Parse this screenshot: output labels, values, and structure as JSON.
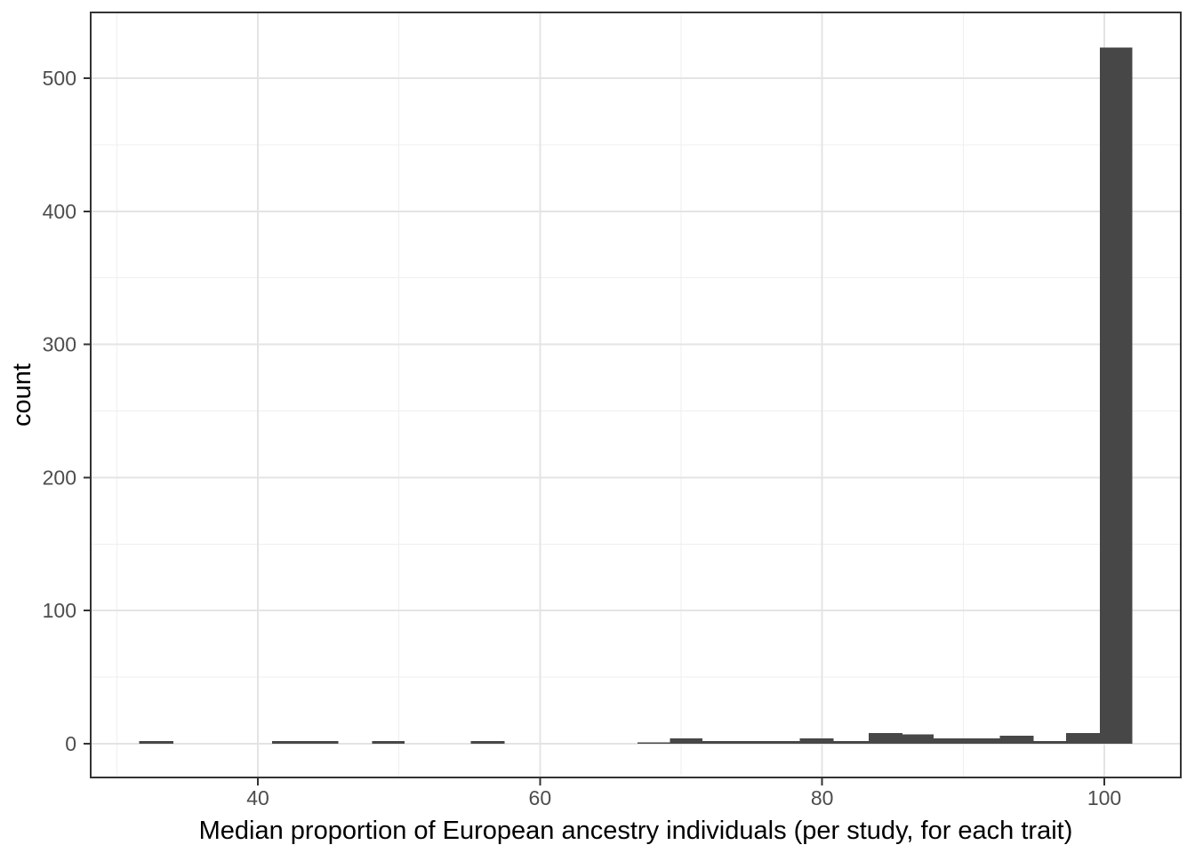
{
  "chart_data": {
    "type": "histogram",
    "title": "",
    "xlabel": "Median proportion of European ancestry individuals (per study, for each trait)",
    "ylabel": "count",
    "xlim": [
      28.15,
      105.42
    ],
    "ylim": [
      -25.4,
      549.4
    ],
    "x_ticks": [
      40,
      60,
      80,
      100
    ],
    "x_minor_ticks": [
      30,
      50,
      70,
      90
    ],
    "y_ticks": [
      0,
      100,
      200,
      300,
      400,
      500
    ],
    "y_minor_ticks": [
      50,
      150,
      250,
      350,
      450
    ],
    "grid": true,
    "legend": false,
    "bin_width": 2.37,
    "bins": [
      {
        "x0": 31.6,
        "x1": 34.0,
        "count": 2
      },
      {
        "x0": 41.0,
        "x1": 43.3,
        "count": 2
      },
      {
        "x0": 43.3,
        "x1": 45.7,
        "count": 2
      },
      {
        "x0": 48.1,
        "x1": 50.4,
        "count": 2
      },
      {
        "x0": 55.1,
        "x1": 57.5,
        "count": 2
      },
      {
        "x0": 66.9,
        "x1": 69.2,
        "count": 1
      },
      {
        "x0": 69.2,
        "x1": 71.5,
        "count": 4
      },
      {
        "x0": 71.5,
        "x1": 73.8,
        "count": 2
      },
      {
        "x0": 73.8,
        "x1": 76.1,
        "count": 2
      },
      {
        "x0": 76.1,
        "x1": 78.4,
        "count": 2
      },
      {
        "x0": 78.4,
        "x1": 80.8,
        "count": 4
      },
      {
        "x0": 80.8,
        "x1": 83.3,
        "count": 2
      },
      {
        "x0": 83.3,
        "x1": 85.7,
        "count": 8
      },
      {
        "x0": 85.7,
        "x1": 87.9,
        "count": 7
      },
      {
        "x0": 87.9,
        "x1": 90.2,
        "count": 4
      },
      {
        "x0": 90.2,
        "x1": 92.6,
        "count": 4
      },
      {
        "x0": 92.6,
        "x1": 95.0,
        "count": 6
      },
      {
        "x0": 95.0,
        "x1": 97.3,
        "count": 2
      },
      {
        "x0": 97.3,
        "x1": 99.7,
        "count": 8
      },
      {
        "x0": 99.7,
        "x1": 102.0,
        "count": 523
      }
    ],
    "colors": {
      "bar_fill": "#474747",
      "panel_border": "#333333",
      "grid_major": "#e4e4e4",
      "grid_minor": "#efefef",
      "tick_mark": "#333333",
      "tick_label": "#4d4d4d",
      "axis_title": "#000000",
      "background": "#ffffff"
    }
  }
}
